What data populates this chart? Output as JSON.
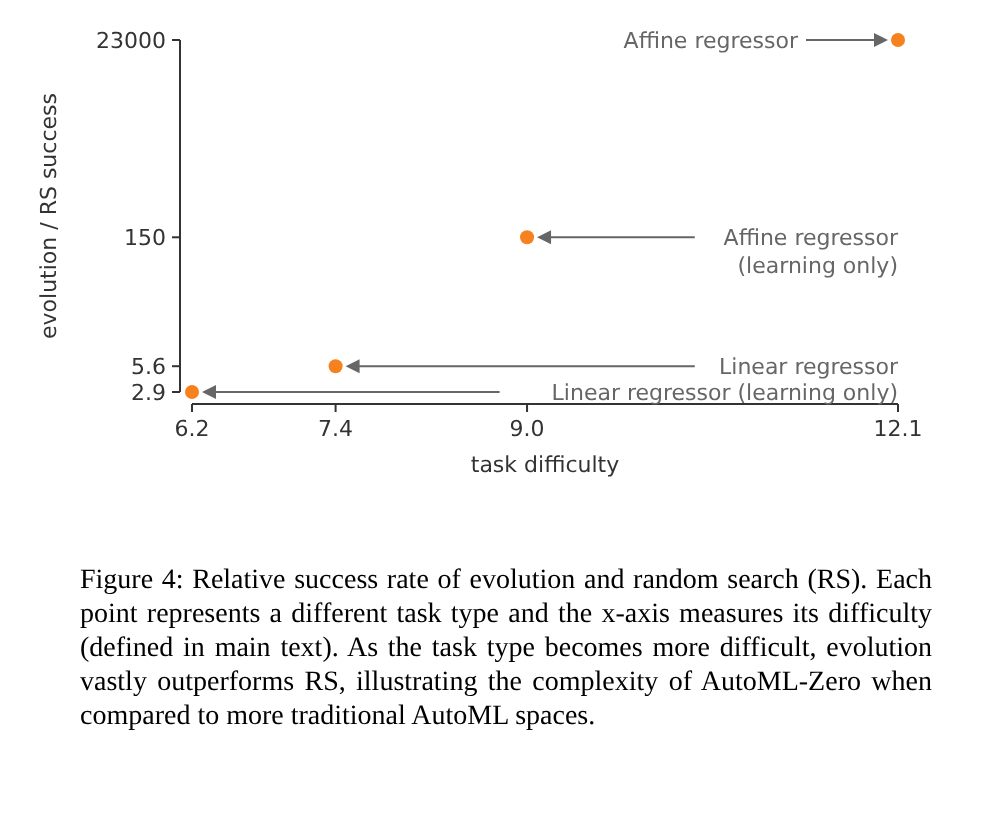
{
  "chart_data": {
    "type": "scatter",
    "xlabel": "task difficulty",
    "ylabel": "evolution / RS success",
    "x": [
      6.2,
      7.4,
      9.0,
      12.1
    ],
    "values": [
      2.9,
      5.6,
      150,
      23000
    ],
    "color": "#f5821f",
    "marker": "circle",
    "log": "y",
    "xlim": [
      6.2,
      12.1
    ],
    "ylim": [
      2.9,
      23000
    ],
    "xticks": [
      6.2,
      7.4,
      {
        "value": 9.0,
        "label": "9.0"
      },
      12.1
    ],
    "yticks": [
      2.9,
      5.6,
      150,
      23000
    ],
    "annotations": [
      "Linear regressor (learning only)",
      "Linear regressor",
      "Affine regressor\n(learning only)",
      "Affine regressor",
      "Figure 4: Relative success rate of evolution and random search (RS). Each point represents a different task type and the x-axis measures its difficulty (defined in main text). As the task type becomes more difficult, evolution vastly outperforms RS, illustrating the complexity of AutoML-Zero when compared to more traditional AutoML spaces."
    ]
  }
}
